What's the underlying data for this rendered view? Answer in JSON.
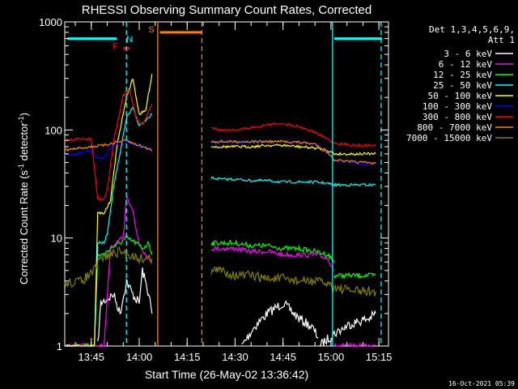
{
  "chart_data": {
    "type": "line",
    "title": "RHESSI Observing Summary Count Rates, Corrected",
    "xlabel": "Start Time (26-May-02 13:36:42)",
    "ylabel_parts": {
      "before": "Corrected Count Rate (s",
      "sup1": "-1",
      "mid": " detector",
      "sup2": "-1",
      "after": ")"
    },
    "ylog": true,
    "ylim": [
      1,
      1000
    ],
    "xlim_min": [
      816.7,
      918.0
    ],
    "x_units": "minutes after 00:00 UT",
    "y_ticks": [
      {
        "v": 1,
        "label": "1"
      },
      {
        "v": 10,
        "label": "10"
      },
      {
        "v": 100,
        "label": "100"
      },
      {
        "v": 1000,
        "label": "1000"
      }
    ],
    "x_ticks": [
      {
        "v": 825,
        "label": "13:45"
      },
      {
        "v": 840,
        "label": "14:00"
      },
      {
        "v": 855,
        "label": "14:15"
      },
      {
        "v": 870,
        "label": "14:30"
      },
      {
        "v": 885,
        "label": "14:45"
      },
      {
        "v": 900,
        "label": "15:00"
      },
      {
        "v": 915,
        "label": "15:15"
      }
    ],
    "legend_header": [
      "Det 1,3,4,5,6,9,",
      "Att 1"
    ],
    "legend_placement": "right",
    "series": [
      {
        "name": "3 - 6 keV",
        "color": "#ffffff",
        "segments": [
          [
            [
              827,
              1
            ],
            [
              828,
              2.5
            ],
            [
              832,
              3
            ],
            [
              834,
              2
            ],
            [
              836,
              4
            ],
            [
              838,
              3
            ],
            [
              840,
              2.5
            ],
            [
              841,
              5
            ],
            [
              843,
              3
            ],
            [
              844,
              2
            ]
          ],
          [
            [
              872,
              1
            ],
            [
              876,
              1.5
            ],
            [
              880,
              2
            ],
            [
              885,
              2.5
            ],
            [
              890,
              1.8
            ],
            [
              894,
              1.5
            ],
            [
              896,
              1.2
            ]
          ],
          [
            [
              896.5,
              1
            ],
            [
              898,
              1.1
            ],
            [
              901,
              1.3
            ],
            [
              906,
              1.6
            ],
            [
              912,
              1.8
            ],
            [
              914,
              2
            ]
          ]
        ]
      },
      {
        "name": "6 - 12 keV",
        "color": "#ff00ff",
        "segments": [
          [
            [
              816.7,
              1
            ],
            [
              829,
              1
            ],
            [
              831,
              8
            ],
            [
              833,
              9
            ],
            [
              835,
              10
            ],
            [
              836,
              25
            ],
            [
              838,
              18
            ],
            [
              839,
              12
            ],
            [
              840,
              9
            ],
            [
              842,
              7
            ],
            [
              844,
              6
            ]
          ],
          [
            [
              862.5,
              8
            ],
            [
              866,
              8
            ],
            [
              870,
              8
            ],
            [
              875,
              7.5
            ],
            [
              880,
              7.5
            ],
            [
              885,
              7
            ],
            [
              890,
              7
            ],
            [
              895,
              7
            ],
            [
              899,
              6.5
            ],
            [
              901,
              5
            ]
          ],
          [
            [
              901,
              1
            ],
            [
              905,
              1
            ],
            [
              910,
              1
            ],
            [
              914,
              1
            ]
          ]
        ]
      },
      {
        "name": "12 - 25 keV",
        "color": "#00ff00",
        "segments": [
          [
            [
              816.7,
              1
            ],
            [
              826,
              1
            ],
            [
              827,
              7
            ],
            [
              829,
              7
            ],
            [
              831,
              8
            ],
            [
              834,
              9
            ],
            [
              836,
              10
            ],
            [
              839,
              9
            ],
            [
              841,
              8
            ],
            [
              843,
              9
            ],
            [
              844,
              7
            ]
          ],
          [
            [
              862.5,
              9
            ],
            [
              866,
              9
            ],
            [
              870,
              9
            ],
            [
              875,
              8.5
            ],
            [
              880,
              8.5
            ],
            [
              885,
              8
            ],
            [
              890,
              8
            ],
            [
              895,
              7.5
            ],
            [
              899,
              7
            ],
            [
              901,
              6
            ]
          ],
          [
            [
              901,
              4.5
            ],
            [
              905,
              4.5
            ],
            [
              910,
              4.5
            ],
            [
              914,
              4.5
            ]
          ]
        ]
      },
      {
        "name": "25 - 50 keV",
        "color": "#00ffff",
        "segments": [
          [
            [
              816.7,
              1
            ],
            [
              826,
              1
            ],
            [
              827,
              9
            ],
            [
              829,
              9
            ],
            [
              830,
              11
            ],
            [
              832,
              30
            ],
            [
              834,
              60
            ],
            [
              836,
              130
            ],
            [
              838,
              160
            ],
            [
              840,
              110
            ],
            [
              842,
              120
            ],
            [
              844,
              140
            ]
          ],
          [
            [
              862.5,
              36
            ],
            [
              866,
              35
            ],
            [
              870,
              35
            ],
            [
              875,
              34
            ],
            [
              880,
              34
            ],
            [
              885,
              33
            ],
            [
              890,
              33
            ],
            [
              895,
              33
            ],
            [
              899,
              32
            ],
            [
              901,
              31
            ],
            [
              905,
              31
            ],
            [
              910,
              31
            ],
            [
              914,
              31
            ]
          ]
        ]
      },
      {
        "name": "50 - 100 keV",
        "color": "#ffff00",
        "segments": [
          [
            [
              816.7,
              1
            ],
            [
              826,
              1
            ],
            [
              827,
              17
            ],
            [
              829,
              17
            ],
            [
              831,
              22
            ],
            [
              833,
              70
            ],
            [
              836,
              200
            ],
            [
              838,
              300
            ],
            [
              840,
              140
            ],
            [
              842,
              150
            ],
            [
              844,
              330
            ]
          ],
          [
            [
              862.5,
              70
            ],
            [
              866,
              70
            ],
            [
              870,
              70
            ],
            [
              875,
              70
            ],
            [
              880,
              72
            ],
            [
              885,
              72
            ],
            [
              890,
              70
            ],
            [
              895,
              68
            ],
            [
              899,
              65
            ],
            [
              901,
              60
            ],
            [
              905,
              60
            ],
            [
              910,
              60
            ],
            [
              914,
              60
            ]
          ]
        ]
      },
      {
        "name": "100 - 300 keV",
        "color": "#0000ff",
        "segments": [
          [
            [
              816.7,
              58
            ],
            [
              820,
              60
            ],
            [
              825,
              65
            ],
            [
              827,
              55
            ],
            [
              829,
              55
            ],
            [
              831,
              70
            ],
            [
              833,
              75
            ],
            [
              836,
              78
            ],
            [
              838,
              75
            ],
            [
              840,
              72
            ],
            [
              842,
              68
            ],
            [
              844,
              66
            ]
          ],
          [
            [
              862.5,
              78
            ],
            [
              866,
              78
            ],
            [
              870,
              78
            ],
            [
              875,
              78
            ],
            [
              880,
              78
            ],
            [
              885,
              78
            ],
            [
              890,
              77
            ],
            [
              895,
              74
            ],
            [
              899,
              62
            ],
            [
              901,
              52
            ],
            [
              905,
              50
            ],
            [
              910,
              49
            ],
            [
              914,
              48
            ]
          ]
        ]
      },
      {
        "name": "300 - 800 keV",
        "color": "#ff0000",
        "segments": [
          [
            [
              816.7,
              80
            ],
            [
              820,
              82
            ],
            [
              825,
              82
            ],
            [
              827,
              23
            ],
            [
              829,
              23
            ],
            [
              830,
              28
            ],
            [
              832,
              80
            ],
            [
              835,
              210
            ],
            [
              837,
              230
            ],
            [
              839,
              130
            ],
            [
              841,
              110
            ],
            [
              844,
              175
            ]
          ],
          [
            [
              862.5,
              105
            ],
            [
              866,
              100
            ],
            [
              870,
              100
            ],
            [
              875,
              105
            ],
            [
              880,
              112
            ],
            [
              885,
              115
            ],
            [
              890,
              108
            ],
            [
              895,
              95
            ],
            [
              899,
              82
            ],
            [
              901,
              76
            ],
            [
              905,
              73
            ],
            [
              910,
              72
            ],
            [
              914,
              72
            ]
          ]
        ]
      },
      {
        "name": "800 - 7000 keV",
        "color": "#ff8000",
        "segments": [
          [
            [
              816.7,
              65
            ],
            [
              820,
              67
            ],
            [
              825,
              70
            ],
            [
              829,
              72
            ],
            [
              832,
              76
            ],
            [
              836,
              80
            ],
            [
              838,
              75
            ],
            [
              840,
              72
            ],
            [
              844,
              65
            ]
          ],
          [
            [
              862.5,
              78
            ],
            [
              866,
              78
            ],
            [
              870,
              78
            ],
            [
              875,
              78
            ],
            [
              880,
              78
            ],
            [
              885,
              78
            ],
            [
              890,
              77
            ],
            [
              895,
              74
            ],
            [
              899,
              62
            ],
            [
              901,
              53
            ],
            [
              905,
              51
            ],
            [
              910,
              50
            ],
            [
              914,
              49
            ]
          ]
        ]
      },
      {
        "name": "7000 - 15000 keV",
        "color": "#808000",
        "segments": [
          [
            [
              816.7,
              3.8
            ],
            [
              822,
              4
            ],
            [
              826,
              5
            ],
            [
              828,
              6.5
            ],
            [
              831,
              7
            ],
            [
              834,
              7.5
            ],
            [
              837,
              7
            ],
            [
              840,
              6.5
            ],
            [
              844,
              6.5
            ]
          ],
          [
            [
              862.5,
              5
            ],
            [
              866,
              5
            ],
            [
              870,
              4.5
            ],
            [
              875,
              4.5
            ],
            [
              880,
              4.2
            ],
            [
              885,
              4.2
            ],
            [
              890,
              4
            ],
            [
              895,
              4
            ],
            [
              899,
              3.8
            ],
            [
              901,
              3.5
            ],
            [
              905,
              3.3
            ],
            [
              910,
              3.2
            ],
            [
              914,
              3.2
            ]
          ]
        ]
      }
    ],
    "annotations": [
      {
        "type": "hbar",
        "color": "#00ffff",
        "x0": 817.5,
        "x1": 833,
        "y": 700
      },
      {
        "type": "hbar",
        "color": "#00ffff",
        "x0": 901,
        "x1": 916,
        "y": 700
      },
      {
        "type": "hbar",
        "color": "#ff0000",
        "x0": 835,
        "x1": 837,
        "y": 570
      },
      {
        "type": "hbar",
        "color": "#ff8000",
        "x0": 846.5,
        "x1": 859.5,
        "y": 800
      },
      {
        "type": "vline",
        "color": "#00ffff",
        "x": 836,
        "dash": true
      },
      {
        "type": "vline",
        "color": "#ff8000",
        "x": 845.8,
        "dash": false
      },
      {
        "type": "vline",
        "color": "#ff8000",
        "x": 859.6,
        "dash": true
      },
      {
        "type": "vline",
        "color": "#00ffff",
        "x": 900.5,
        "dash": false
      },
      {
        "type": "vline",
        "color": "#00ffff",
        "x": 915.7,
        "dash": true
      },
      {
        "type": "text",
        "label": "N",
        "color": "#00ffff",
        "x": 837,
        "y": 650
      },
      {
        "type": "text",
        "label": "F",
        "color": "#ff0000",
        "x": 832.5,
        "y": 560
      },
      {
        "type": "text",
        "label": "S",
        "color": "#ff8000",
        "x": 843.8,
        "y": 800
      }
    ],
    "footer_date": "16-Oct-2021 05:39"
  }
}
